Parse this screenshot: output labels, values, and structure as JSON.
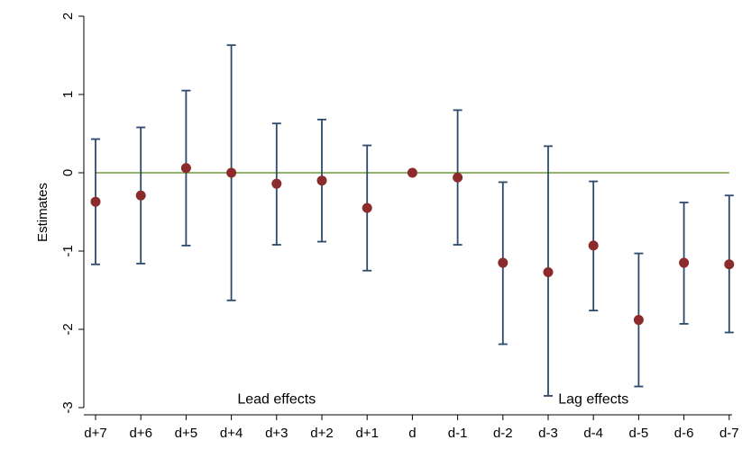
{
  "chart_data": {
    "type": "scatter",
    "title": "",
    "xlabel": "",
    "ylabel": "Estimates",
    "ylim": [
      -3,
      2
    ],
    "yticks": [
      -3,
      -2,
      -1,
      0,
      1,
      2
    ],
    "categories": [
      "d+7",
      "d+6",
      "d+5",
      "d+4",
      "d+3",
      "d+2",
      "d+1",
      "d",
      "d-1",
      "d-2",
      "d-3",
      "d-4",
      "d-5",
      "d-6",
      "d-7"
    ],
    "series": [
      {
        "estimates": [
          -0.37,
          -0.29,
          0.06,
          0.0,
          -0.14,
          -0.1,
          -0.45,
          0.0,
          -0.06,
          -1.15,
          -1.27,
          -0.93,
          -1.88,
          -1.15,
          -1.17
        ],
        "ci_low": [
          -1.17,
          -1.16,
          -0.93,
          -1.63,
          -0.92,
          -0.88,
          -1.25,
          0.0,
          -0.92,
          -2.19,
          -2.85,
          -1.76,
          -2.73,
          -1.93,
          -2.04
        ],
        "ci_high": [
          0.43,
          0.58,
          1.05,
          1.63,
          0.63,
          0.68,
          0.35,
          0.0,
          0.8,
          -0.12,
          0.34,
          -0.11,
          -1.03,
          -0.38,
          -0.29
        ]
      }
    ],
    "reference_line": 0,
    "annotations": [
      {
        "text": "Lead effects",
        "x_category": "d+3",
        "y": -2.95
      },
      {
        "text": "Lag effects",
        "x_category": "d-4",
        "y": -2.95
      }
    ],
    "grid": false,
    "colors": {
      "marker": "#8b2b2b",
      "errorbar": "#2c4a6b",
      "refline": "#6a9a3a",
      "axis": "#000000"
    }
  }
}
